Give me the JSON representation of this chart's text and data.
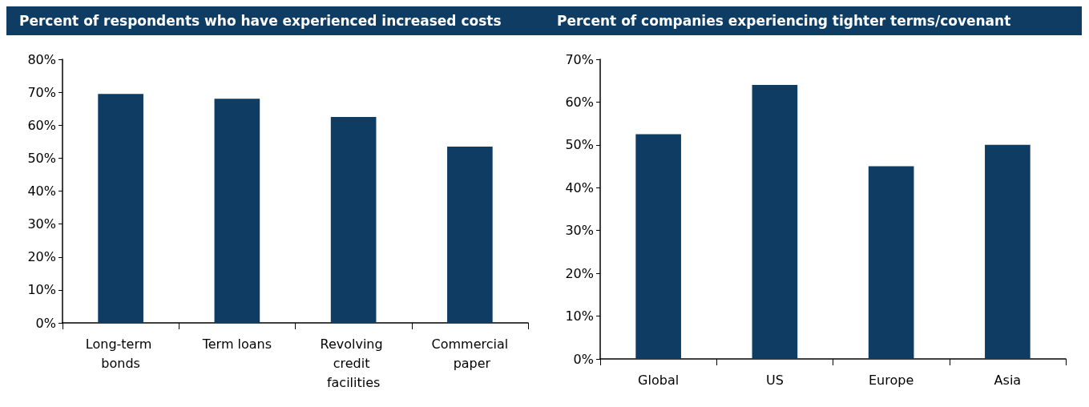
{
  "chart_data": [
    {
      "type": "bar",
      "title": "Percent of respondents who have experienced increased costs",
      "categories": [
        "Long-term bonds",
        "Term loans",
        "Revolving credit facilities",
        "Commercial paper"
      ],
      "values": [
        69.5,
        68,
        62.5,
        53.5
      ],
      "color": "#0f3c63",
      "ylim": [
        0,
        80
      ],
      "yticks": [
        {
          "value": 0,
          "label": "0%"
        },
        {
          "value": 10,
          "label": "10%"
        },
        {
          "value": 20,
          "label": "20%"
        },
        {
          "value": 30,
          "label": "30%"
        },
        {
          "value": 40,
          "label": "40%"
        },
        {
          "value": 50,
          "label": "50%"
        },
        {
          "value": 60,
          "label": "60%"
        },
        {
          "value": 70,
          "label": "70%"
        },
        {
          "value": 80,
          "label": "80%"
        }
      ],
      "grid": false
    },
    {
      "type": "bar",
      "title": "Percent of companies experiencing tighter terms/covenant",
      "categories": [
        "Global",
        "US",
        "Europe",
        "Asia"
      ],
      "values": [
        52.5,
        64,
        45,
        50
      ],
      "color": "#0f3c63",
      "ylim": [
        0,
        70
      ],
      "yticks": [
        {
          "value": 0,
          "label": "0%"
        },
        {
          "value": 10,
          "label": "10%"
        },
        {
          "value": 20,
          "label": "20%"
        },
        {
          "value": 30,
          "label": "30%"
        },
        {
          "value": 40,
          "label": "40%"
        },
        {
          "value": 50,
          "label": "50%"
        },
        {
          "value": 60,
          "label": "60%"
        },
        {
          "value": 70,
          "label": "70%"
        }
      ],
      "grid": false
    }
  ]
}
